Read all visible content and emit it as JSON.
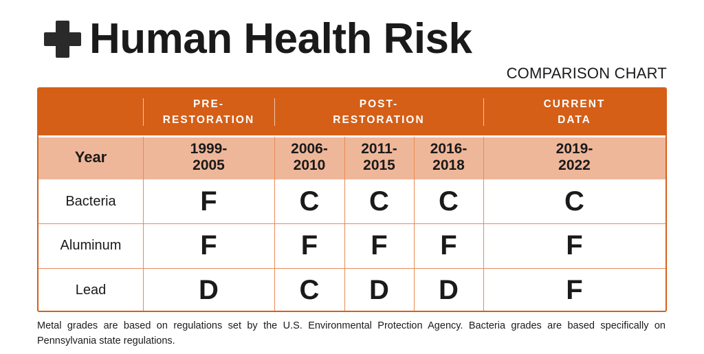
{
  "header": {
    "icon": "cross-icon",
    "title": "Human Health Risk",
    "subtitle": "COMPARISON CHART"
  },
  "chart_data": {
    "type": "table",
    "title": "Human Health Risk",
    "subtitle": "COMPARISON CHART",
    "groups": [
      {
        "label": "PRE-\nRESTORATION",
        "span": 1
      },
      {
        "label": "POST-\nRESTORATION",
        "span": 3
      },
      {
        "label": "CURRENT\nDATA",
        "span": 1
      }
    ],
    "row_header_label": "Year",
    "columns": [
      "1999-\n2005",
      "2006-\n2010",
      "2011-\n2015",
      "2016-\n2018",
      "2019-\n2022"
    ],
    "rows": [
      {
        "label": "Bacteria",
        "grades": [
          "F",
          "C",
          "C",
          "C",
          "C"
        ]
      },
      {
        "label": "Aluminum",
        "grades": [
          "F",
          "F",
          "F",
          "F",
          "F"
        ]
      },
      {
        "label": "Lead",
        "grades": [
          "D",
          "C",
          "D",
          "D",
          "F"
        ]
      }
    ],
    "colors": {
      "header": "#d55f17",
      "year_band": "#efb79a",
      "grid": "#e98a55"
    }
  },
  "footnote": "Metal grades are based on regulations set by the U.S. Environmental Protection Agency. Bacteria grades are based specifically on Pennsylvania state regulations."
}
